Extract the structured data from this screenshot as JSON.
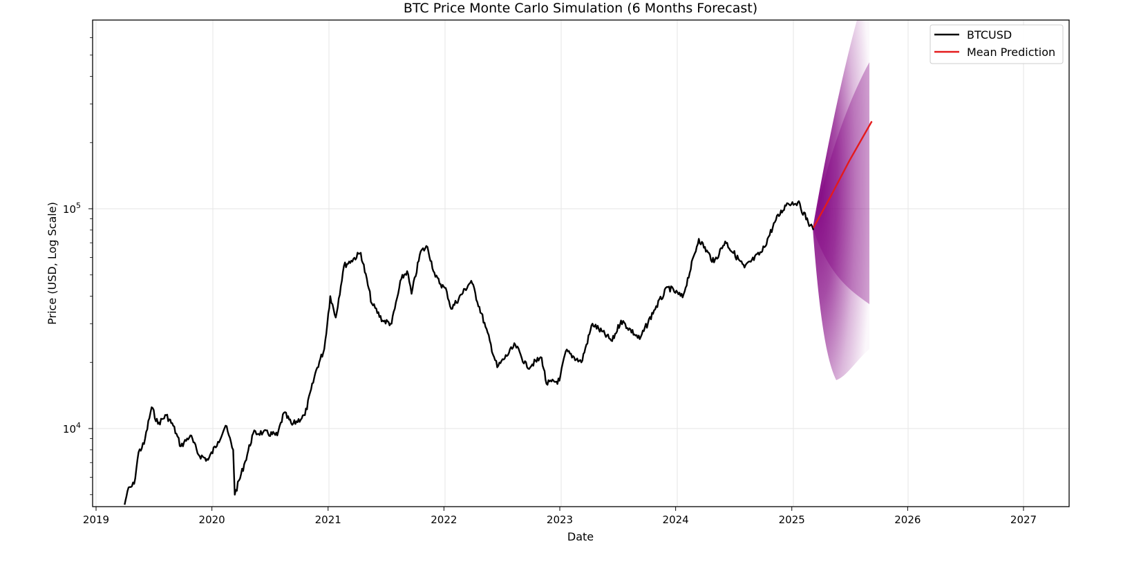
{
  "chart_data": {
    "type": "line",
    "title": "BTC Price Monte Carlo Simulation (6 Months Forecast)",
    "xlabel": "Date",
    "ylabel": "Price (USD, Log Scale)",
    "yscale": "log",
    "ylim": [
      4500,
      700000
    ],
    "xlim": [
      "2019-01-01",
      "2027-05-01"
    ],
    "x_ticks": [
      "2019",
      "2020",
      "2021",
      "2022",
      "2023",
      "2024",
      "2025",
      "2026",
      "2027"
    ],
    "y_ticks": [
      {
        "value": 10000,
        "label_base": "10",
        "label_exp": "4"
      },
      {
        "value": 100000,
        "label_base": "10",
        "label_exp": "5"
      }
    ],
    "grid": true,
    "legend_position": "upper right",
    "legend": [
      {
        "label": "BTCUSD",
        "color": "#000000"
      },
      {
        "label": "Mean Prediction",
        "color": "#e41a1c"
      }
    ],
    "series": [
      {
        "name": "BTCUSD",
        "color": "#000000",
        "points": [
          [
            "2019-04-01",
            4500
          ],
          [
            "2019-04-10",
            5200
          ],
          [
            "2019-05-01",
            5600
          ],
          [
            "2019-05-15",
            7800
          ],
          [
            "2019-06-01",
            8500
          ],
          [
            "2019-06-25",
            12500
          ],
          [
            "2019-07-15",
            10500
          ],
          [
            "2019-08-10",
            11500
          ],
          [
            "2019-09-01",
            10300
          ],
          [
            "2019-09-25",
            8300
          ],
          [
            "2019-10-25",
            9300
          ],
          [
            "2019-11-20",
            7600
          ],
          [
            "2019-12-20",
            7200
          ],
          [
            "2020-01-20",
            8700
          ],
          [
            "2020-02-13",
            10300
          ],
          [
            "2020-03-08",
            8000
          ],
          [
            "2020-03-13",
            5000
          ],
          [
            "2020-04-15",
            7100
          ],
          [
            "2020-05-10",
            9500
          ],
          [
            "2020-06-10",
            9600
          ],
          [
            "2020-07-25",
            9300
          ],
          [
            "2020-08-15",
            11800
          ],
          [
            "2020-09-10",
            10400
          ],
          [
            "2020-10-20",
            11500
          ],
          [
            "2020-11-25",
            18500
          ],
          [
            "2020-12-20",
            23000
          ],
          [
            "2021-01-08",
            40000
          ],
          [
            "2021-01-25",
            32000
          ],
          [
            "2021-02-20",
            55000
          ],
          [
            "2021-03-15",
            58000
          ],
          [
            "2021-04-14",
            63000
          ],
          [
            "2021-05-19",
            37000
          ],
          [
            "2021-06-22",
            31000
          ],
          [
            "2021-07-20",
            30000
          ],
          [
            "2021-08-20",
            48000
          ],
          [
            "2021-09-07",
            52000
          ],
          [
            "2021-09-21",
            41000
          ],
          [
            "2021-10-20",
            64000
          ],
          [
            "2021-11-10",
            67000
          ],
          [
            "2021-12-05",
            49000
          ],
          [
            "2022-01-10",
            42000
          ],
          [
            "2022-01-24",
            35000
          ],
          [
            "2022-03-28",
            47000
          ],
          [
            "2022-05-12",
            29000
          ],
          [
            "2022-06-18",
            19000
          ],
          [
            "2022-08-14",
            24000
          ],
          [
            "2022-09-20",
            19000
          ],
          [
            "2022-11-05",
            21000
          ],
          [
            "2022-11-20",
            16000
          ],
          [
            "2022-12-31",
            16500
          ],
          [
            "2023-01-20",
            22500
          ],
          [
            "2023-03-10",
            20000
          ],
          [
            "2023-04-14",
            30000
          ],
          [
            "2023-06-15",
            25000
          ],
          [
            "2023-07-13",
            31000
          ],
          [
            "2023-09-10",
            25500
          ],
          [
            "2023-10-25",
            34500
          ],
          [
            "2023-12-08",
            44000
          ],
          [
            "2024-01-23",
            39500
          ],
          [
            "2024-03-14",
            73000
          ],
          [
            "2024-05-01",
            57000
          ],
          [
            "2024-06-05",
            71000
          ],
          [
            "2024-08-05",
            54000
          ],
          [
            "2024-09-30",
            64000
          ],
          [
            "2024-11-12",
            89000
          ],
          [
            "2024-12-17",
            106000
          ],
          [
            "2025-01-20",
            107000
          ],
          [
            "2025-02-28",
            84000
          ],
          [
            "2025-03-10",
            80000
          ]
        ]
      },
      {
        "name": "Mean Prediction",
        "color": "#e41a1c",
        "points": [
          [
            "2025-03-10",
            82000
          ],
          [
            "2025-05-01",
            112000
          ],
          [
            "2025-07-01",
            165000
          ],
          [
            "2025-09-10",
            250000
          ]
        ]
      }
    ],
    "simulation_band": {
      "name": "Monte Carlo paths",
      "color": "#800080",
      "start": "2025-03-10",
      "end": "2025-09-10",
      "start_value": 82000,
      "end_min": 17000,
      "end_max": 700000
    }
  }
}
